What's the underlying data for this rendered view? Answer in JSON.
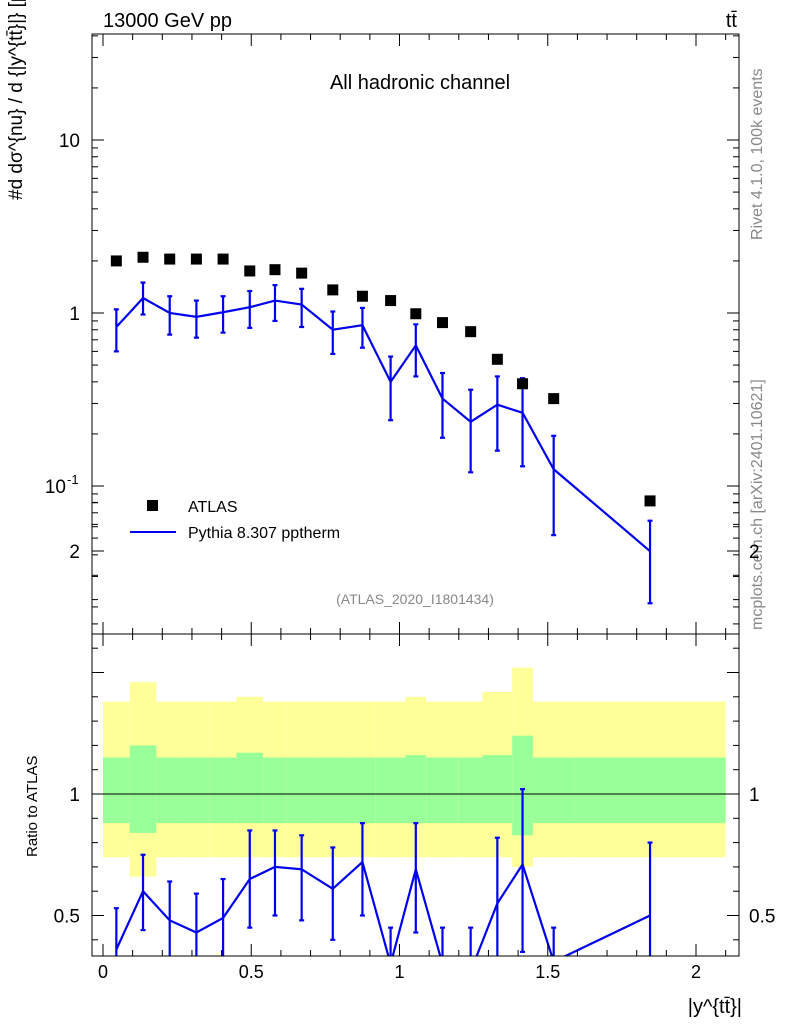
{
  "header": {
    "energy": "13000 GeV pp",
    "process": "tt̄"
  },
  "side_labels": {
    "rivet": "Rivet 4.1.0,  100k events",
    "mcplots": "mcplots.cern.ch [arXiv:2401.10621]"
  },
  "chart_data": [
    {
      "type": "scatter",
      "panel": "main",
      "title": "All hadronic channel",
      "analysis_tag": "(ATLAS_2020_I1801434)",
      "ylabel": "#d dσ^{nu} / d {|y^{tt̄}|} [pb]",
      "yscale": "log",
      "ylim": [
        0.018,
        40
      ],
      "xlim": [
        -0.05,
        2.15
      ],
      "ytick_labels": [
        "10^{-1}",
        "1",
        "10"
      ],
      "legend_location": "lower-left",
      "series": [
        {
          "name": "ATLAS",
          "style": "black-square-markers",
          "x": [
            0.045,
            0.135,
            0.225,
            0.315,
            0.405,
            0.495,
            0.58,
            0.67,
            0.775,
            0.875,
            0.97,
            1.055,
            1.145,
            1.24,
            1.33,
            1.415,
            1.52,
            1.845
          ],
          "y": [
            2.0,
            2.1,
            2.05,
            2.05,
            2.05,
            1.75,
            1.78,
            1.7,
            1.36,
            1.25,
            1.18,
            0.99,
            0.88,
            0.78,
            0.54,
            0.39,
            0.32,
            0.082
          ]
        },
        {
          "name": "Pythia 8.307 pptherm",
          "style": "blue-line-with-errors",
          "color": "#0000ee",
          "x": [
            0.045,
            0.135,
            0.225,
            0.315,
            0.405,
            0.495,
            0.58,
            0.67,
            0.775,
            0.875,
            0.97,
            1.055,
            1.145,
            1.24,
            1.33,
            1.415,
            1.52,
            1.845
          ],
          "y": [
            0.83,
            1.22,
            1.0,
            0.95,
            1.01,
            1.08,
            1.18,
            1.12,
            0.8,
            0.85,
            0.4,
            0.65,
            0.32,
            0.235,
            0.295,
            0.265,
            0.125,
            0.042
          ],
          "yerr_low": [
            0.6,
            0.98,
            0.75,
            0.72,
            0.77,
            0.82,
            0.9,
            0.83,
            0.58,
            0.63,
            0.24,
            0.43,
            0.19,
            0.12,
            0.16,
            0.13,
            0.052,
            0.021
          ],
          "yerr_high": [
            1.05,
            1.5,
            1.25,
            1.18,
            1.25,
            1.34,
            1.45,
            1.38,
            1.02,
            1.07,
            0.56,
            0.86,
            0.45,
            0.36,
            0.43,
            0.42,
            0.195,
            0.063
          ]
        }
      ]
    },
    {
      "type": "line",
      "panel": "ratio",
      "ylabel": "Ratio to ATLAS",
      "xlabel": "|y^{tt̄}|",
      "ylim": [
        0.35,
        2.25
      ],
      "xlim": [
        -0.05,
        2.15
      ],
      "ytick_labels": [
        "0.5",
        "1",
        "2"
      ],
      "xtick_labels": [
        "0",
        "0.5",
        "1",
        "1.5",
        "2"
      ],
      "xticks": [
        0,
        0.5,
        1,
        1.5,
        2
      ],
      "bin_edges": [
        0.0,
        0.09,
        0.18,
        0.27,
        0.36,
        0.45,
        0.54,
        0.62,
        0.72,
        0.83,
        0.92,
        1.02,
        1.09,
        1.2,
        1.28,
        1.38,
        1.45,
        1.59,
        2.1
      ],
      "band_yellow": {
        "low": [
          0.74,
          0.66,
          0.74,
          0.74,
          0.74,
          0.74,
          0.74,
          0.74,
          0.74,
          0.74,
          0.74,
          0.74,
          0.74,
          0.74,
          0.74,
          0.7,
          0.74,
          0.74
        ],
        "high": [
          1.38,
          1.46,
          1.38,
          1.38,
          1.38,
          1.4,
          1.38,
          1.38,
          1.38,
          1.38,
          1.38,
          1.4,
          1.38,
          1.38,
          1.42,
          1.52,
          1.38,
          1.38
        ]
      },
      "band_green": {
        "low": [
          0.88,
          0.84,
          0.88,
          0.88,
          0.88,
          0.88,
          0.88,
          0.88,
          0.88,
          0.88,
          0.88,
          0.88,
          0.88,
          0.88,
          0.88,
          0.83,
          0.88,
          0.88
        ],
        "high": [
          1.15,
          1.2,
          1.15,
          1.15,
          1.15,
          1.17,
          1.15,
          1.15,
          1.15,
          1.15,
          1.15,
          1.16,
          1.15,
          1.15,
          1.16,
          1.24,
          1.15,
          1.15
        ]
      },
      "reference_line": 1.0,
      "series": [
        {
          "name": "Pythia 8.307 pptherm / ATLAS",
          "color": "#0000ee",
          "x": [
            0.045,
            0.135,
            0.225,
            0.315,
            0.405,
            0.495,
            0.58,
            0.67,
            0.775,
            0.875,
            0.97,
            1.055,
            1.145,
            1.24,
            1.33,
            1.415,
            1.52,
            1.845
          ],
          "y": [
            0.36,
            0.6,
            0.48,
            0.43,
            0.49,
            0.65,
            0.7,
            0.69,
            0.61,
            0.72,
            0.3,
            0.69,
            0.3,
            0.27,
            0.55,
            0.71,
            0.31,
            0.5
          ],
          "yerr_low": [
            0.2,
            0.44,
            0.3,
            0.28,
            0.32,
            0.45,
            0.5,
            0.48,
            0.4,
            0.5,
            0.15,
            0.43,
            0.18,
            0.12,
            0.29,
            0.35,
            0.15,
            0.25
          ],
          "yerr_high": [
            0.53,
            0.75,
            0.64,
            0.59,
            0.65,
            0.85,
            0.85,
            0.83,
            0.78,
            0.88,
            0.45,
            0.88,
            0.45,
            0.45,
            0.82,
            1.02,
            0.45,
            0.8
          ]
        }
      ]
    }
  ]
}
